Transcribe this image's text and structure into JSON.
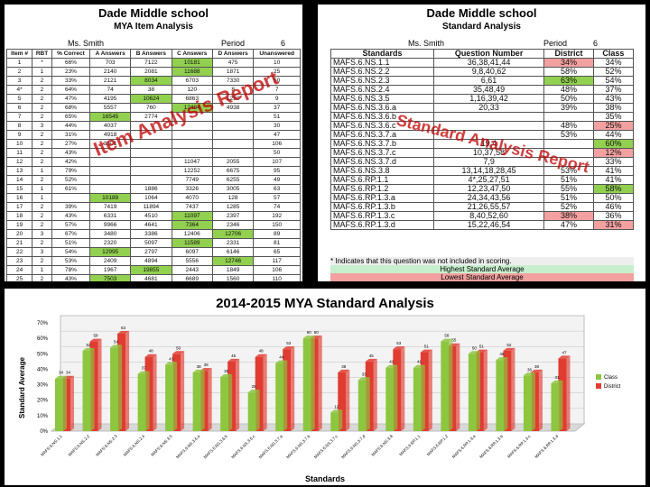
{
  "item_report": {
    "school": "Dade Middle school",
    "subtitle": "MYA Item Analysis",
    "teacher": "Ms. Smith",
    "period_label": "Period",
    "period_value": "6",
    "overlay": "Item Analysis Report",
    "columns": [
      "Item #",
      "RBT",
      "% Correct",
      "A Answers",
      "B Answers",
      "C Answers",
      "D Answers",
      "Unanswered"
    ],
    "rows": [
      [
        "1",
        "*",
        "66%",
        "703",
        "7122",
        "10181",
        "475",
        "10"
      ],
      [
        "2",
        "1",
        "23%",
        "2140",
        "2081",
        "11688",
        "1871",
        "25"
      ],
      [
        "3",
        "2",
        "33%",
        "2121",
        "8034",
        "6703",
        "7330",
        "50"
      ],
      [
        "4*",
        "2",
        "64%",
        "74",
        "38",
        "120",
        "8",
        "7"
      ],
      [
        "5",
        "2",
        "47%",
        "4195",
        "10624",
        "6863",
        "1250",
        "9"
      ],
      [
        "6",
        "2",
        "68%",
        "5557",
        "760",
        "12484",
        "4938",
        "37"
      ],
      [
        "7",
        "2",
        "65%",
        "16545",
        "2774",
        "",
        "",
        "51"
      ],
      [
        "8",
        "3",
        "44%",
        "4037",
        "",
        "",
        "",
        "30"
      ],
      [
        "9",
        "2",
        "31%",
        "4918",
        "",
        "",
        "",
        "47"
      ],
      [
        "10",
        "2",
        "27%",
        "3501",
        "",
        "",
        "",
        "106"
      ],
      [
        "11",
        "2",
        "43%",
        "",
        "",
        "",
        "",
        "50"
      ],
      [
        "12",
        "2",
        "42%",
        "",
        "",
        "11047",
        "2055",
        "107"
      ],
      [
        "13",
        "1",
        "79%",
        "",
        "",
        "12252",
        "6675",
        "95"
      ],
      [
        "14",
        "2",
        "52%",
        "",
        "",
        "7749",
        "6255",
        "49"
      ],
      [
        "15",
        "1",
        "61%",
        "",
        "1886",
        "3326",
        "3005",
        "63"
      ],
      [
        "16",
        "1",
        "",
        "10189",
        "1064",
        "4070",
        "128",
        "57"
      ],
      [
        "17",
        "2",
        "39%",
        "7419",
        "11894",
        "7437",
        "1285",
        "74"
      ],
      [
        "18",
        "2",
        "43%",
        "6331",
        "4510",
        "11097",
        "2397",
        "192"
      ],
      [
        "19",
        "2",
        "57%",
        "9966",
        "4641",
        "7364",
        "2346",
        "150"
      ],
      [
        "20",
        "3",
        "67%",
        "3480",
        "3386",
        "12406",
        "12706",
        "89"
      ],
      [
        "21",
        "2",
        "51%",
        "2320",
        "5097",
        "11589",
        "2331",
        "81"
      ],
      [
        "22",
        "3",
        "54%",
        "12995",
        "2797",
        "6097",
        "6146",
        "65"
      ],
      [
        "23",
        "2",
        "53%",
        "2409",
        "4894",
        "5556",
        "12746",
        "117"
      ],
      [
        "24",
        "1",
        "78%",
        "1967",
        "19855",
        "2443",
        "1849",
        "106"
      ],
      [
        "25",
        "2",
        "43%",
        "7503",
        "4681",
        "6689",
        "1560",
        "110"
      ]
    ],
    "green_cells": [
      [
        0,
        5
      ],
      [
        1,
        5
      ],
      [
        2,
        4
      ],
      [
        4,
        4
      ],
      [
        5,
        5
      ],
      [
        6,
        3
      ],
      [
        15,
        3
      ],
      [
        17,
        5
      ],
      [
        18,
        5
      ],
      [
        19,
        6
      ],
      [
        20,
        5
      ],
      [
        21,
        3
      ],
      [
        22,
        6
      ],
      [
        23,
        4
      ],
      [
        24,
        3
      ]
    ]
  },
  "standard_report": {
    "school": "Dade Middle school",
    "subtitle": "Standard Analysis",
    "teacher": "Ms. Smith",
    "period_label": "Period",
    "period_value": "6",
    "overlay": "Standard Analysis Report",
    "columns": [
      "Standards",
      "Question Number",
      "District",
      "Class"
    ],
    "rows": [
      [
        "MAFS.6.NS.1.1",
        "36,38,41,44",
        "34%",
        "34%"
      ],
      [
        "MAFS.6.NS.2.2",
        "9,8,40,62",
        "58%",
        "52%"
      ],
      [
        "MAFS.6.NS.2.3",
        "6,61",
        "63%",
        "54%"
      ],
      [
        "MAFS.6.NS.2.4",
        "35,48,49",
        "48%",
        "37%"
      ],
      [
        "MAFS.6.NS.3.5",
        "1,16,39,42",
        "50%",
        "43%"
      ],
      [
        "MAFS.6.NS.3.6.a",
        "20,33",
        "39%",
        "38%"
      ],
      [
        "MAFS.6.NS.3.6.b",
        "",
        "",
        "35%"
      ],
      [
        "MAFS.6.NS.3.6.c",
        "",
        "48%",
        "25%"
      ],
      [
        "MAFS.6.NS.3.7.a",
        "",
        "53%",
        "44%"
      ],
      [
        "MAFS.6.NS.3.7.b",
        "19,4",
        "",
        "60%"
      ],
      [
        "MAFS.6.NS.3.7.c",
        "10,37,58",
        "",
        "12%"
      ],
      [
        "MAFS.6.NS.3.7.d",
        "7,9",
        "",
        "33%"
      ],
      [
        "MAFS.6.NS.3.8",
        "13,14,18,28,45",
        "53%",
        "41%"
      ],
      [
        "MAFS.6.RP.1.1",
        "4*,25,27,51",
        "51%",
        "41%"
      ],
      [
        "MAFS.6.RP.1.2",
        "12,23,47,50",
        "55%",
        "58%"
      ],
      [
        "MAFS.6.RP.1.3.a",
        "24,34,43,56",
        "51%",
        "50%"
      ],
      [
        "MAFS.6.RP.1.3.b",
        "21,26,55,57",
        "52%",
        "46%"
      ],
      [
        "MAFS.6.RP.1.3.c",
        "8,40,52,60",
        "38%",
        "36%"
      ],
      [
        "MAFS.6.RP.1.3.d",
        "15,22,46,54",
        "47%",
        "31%"
      ]
    ],
    "highlight": {
      "district_red": [
        0,
        17
      ],
      "district_green": [
        2
      ],
      "class_red": [
        7,
        10,
        18
      ],
      "class_green": [
        9,
        14
      ]
    },
    "legend_note": "* Indicates that this question was not included in scoring.",
    "legend_high": "Highest Standard Average",
    "legend_low": "Lowest Standard Average"
  },
  "chart": {
    "title": "2014-2015 MYA Standard Analysis",
    "xlabel": "Standards",
    "ylabel": "Standard Average",
    "legend": [
      "Class",
      "District"
    ],
    "colors": {
      "class": "#8dc63f",
      "district": "#e03c31"
    }
  },
  "chart_data": {
    "type": "bar",
    "title": "2014-2015 MYA Standard Analysis",
    "xlabel": "Standards",
    "ylabel": "Standard Average",
    "ylim": [
      0,
      70
    ],
    "yticks": [
      "0%",
      "10%",
      "20%",
      "30%",
      "40%",
      "50%",
      "60%",
      "70%"
    ],
    "categories": [
      "MAFS.6.NS.1.1",
      "MAFS.6.NS.2.2",
      "MAFS.6.NS.2.3",
      "MAFS.6.NS.2.4",
      "MAFS.6.NS.3.5",
      "MAFS.6.NS.3.6.a",
      "MAFS.6.NS.3.6.b",
      "MAFS.6.NS.3.6.c",
      "MAFS.6.NS.3.7.a",
      "MAFS.6.NS.3.7.b",
      "MAFS.6.NS.3.7.c",
      "MAFS.6.NS.3.7.d",
      "MAFS.6.NS.3.8",
      "MAFS.6.RP.1.1",
      "MAFS.6.RP.1.2",
      "MAFS.6.RP.1.3.a",
      "MAFS.6.RP.1.3.b",
      "MAFS.6.RP.1.3.c",
      "MAFS.6.RP.1.3.d"
    ],
    "series": [
      {
        "name": "Class",
        "values": [
          34,
          52,
          54,
          37,
          43,
          38,
          35,
          25,
          44,
          60,
          12,
          33,
          41,
          41,
          58,
          50,
          46,
          36,
          31
        ]
      },
      {
        "name": "District",
        "values": [
          34,
          58,
          63,
          48,
          50,
          39,
          45,
          48,
          53,
          60,
          38,
          45,
          53,
          51,
          55,
          51,
          52,
          38,
          47
        ]
      }
    ],
    "legend": "right"
  }
}
